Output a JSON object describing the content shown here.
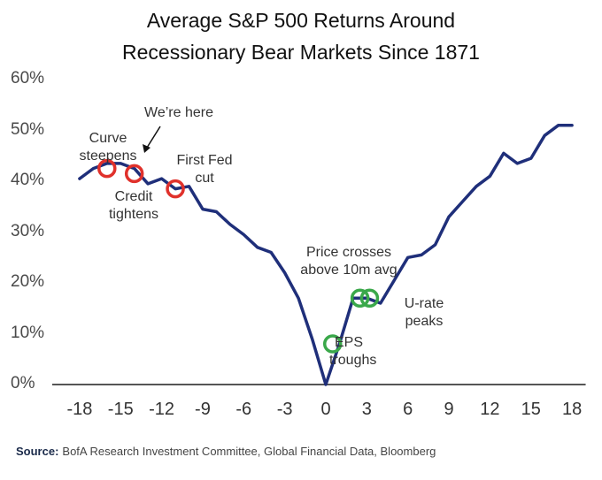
{
  "chart_data": {
    "type": "line",
    "title": "Average S&P 500 Returns Around Recessionary Bear Markets Since 1871",
    "title_lines": [
      "Average S&P 500 Returns Around",
      "Recessionary Bear Markets Since 1871"
    ],
    "xlabel": "",
    "ylabel": "",
    "xlim": [
      -20,
      19
    ],
    "ylim": [
      0,
      60
    ],
    "x_ticks": [
      -18,
      -15,
      -12,
      -9,
      -6,
      -3,
      0,
      3,
      6,
      9,
      12,
      15,
      18
    ],
    "x_tick_labels": [
      "-18",
      "-15",
      "-12",
      "-9",
      "-6",
      "-3",
      "0",
      "3",
      "6",
      "9",
      "12",
      "15",
      "18"
    ],
    "y_ticks": [
      0,
      10,
      20,
      30,
      40,
      50,
      60
    ],
    "y_tick_labels": [
      "0%",
      "10%",
      "20%",
      "30%",
      "40%",
      "50%",
      "60%"
    ],
    "grid": false,
    "series": [
      {
        "color": "#1f2f7a",
        "x": [
          -18,
          -17,
          -16,
          -15,
          -14,
          -13,
          -12,
          -11,
          -10,
          -9,
          -8,
          -7,
          -6,
          -5,
          -4,
          -3,
          -2,
          -1,
          0,
          1,
          2,
          3,
          4,
          5,
          6,
          7,
          8,
          9,
          10,
          11,
          12,
          13,
          14,
          15,
          16,
          17,
          18
        ],
        "y": [
          40.5,
          42.5,
          43.5,
          43.5,
          42.5,
          39.5,
          40.5,
          38.5,
          39,
          34.5,
          34,
          31.5,
          29.5,
          27,
          26,
          22,
          17,
          9,
          0,
          8,
          17,
          17,
          16,
          20.5,
          25,
          25.5,
          27.5,
          33,
          36,
          39,
          41,
          45.5,
          43.5,
          44.5,
          49,
          51,
          51
        ]
      }
    ],
    "markers": [
      {
        "x": -16,
        "y": 42.5,
        "color": "#e0312b"
      },
      {
        "x": -14,
        "y": 41.5,
        "color": "#e0312b"
      },
      {
        "x": -11,
        "y": 38.5,
        "color": "#e0312b"
      },
      {
        "x": 0.5,
        "y": 8,
        "color": "#3aa84a"
      },
      {
        "x": 2.5,
        "y": 17,
        "color": "#3aa84a"
      },
      {
        "x": 3.2,
        "y": 17,
        "color": "#3aa84a"
      }
    ],
    "annotations": [
      {
        "id": "curve-steepens",
        "lines": [
          "Curve",
          "steepens"
        ]
      },
      {
        "id": "were-here",
        "lines": [
          "We’re here"
        ]
      },
      {
        "id": "first-fed-cut",
        "lines": [
          "First Fed",
          "cut"
        ]
      },
      {
        "id": "credit-tightens",
        "lines": [
          "Credit",
          "tightens"
        ]
      },
      {
        "id": "price-crosses",
        "lines": [
          "Price crosses",
          "above 10m avg"
        ]
      },
      {
        "id": "u-rate-peaks",
        "lines": [
          "U-rate",
          "peaks"
        ]
      },
      {
        "id": "eps-troughs",
        "lines": [
          "EPS",
          "troughs"
        ]
      }
    ]
  },
  "source": {
    "label": "Source:",
    "text": "BofA Research Investment Committee, Global Financial Data, Bloomberg"
  }
}
